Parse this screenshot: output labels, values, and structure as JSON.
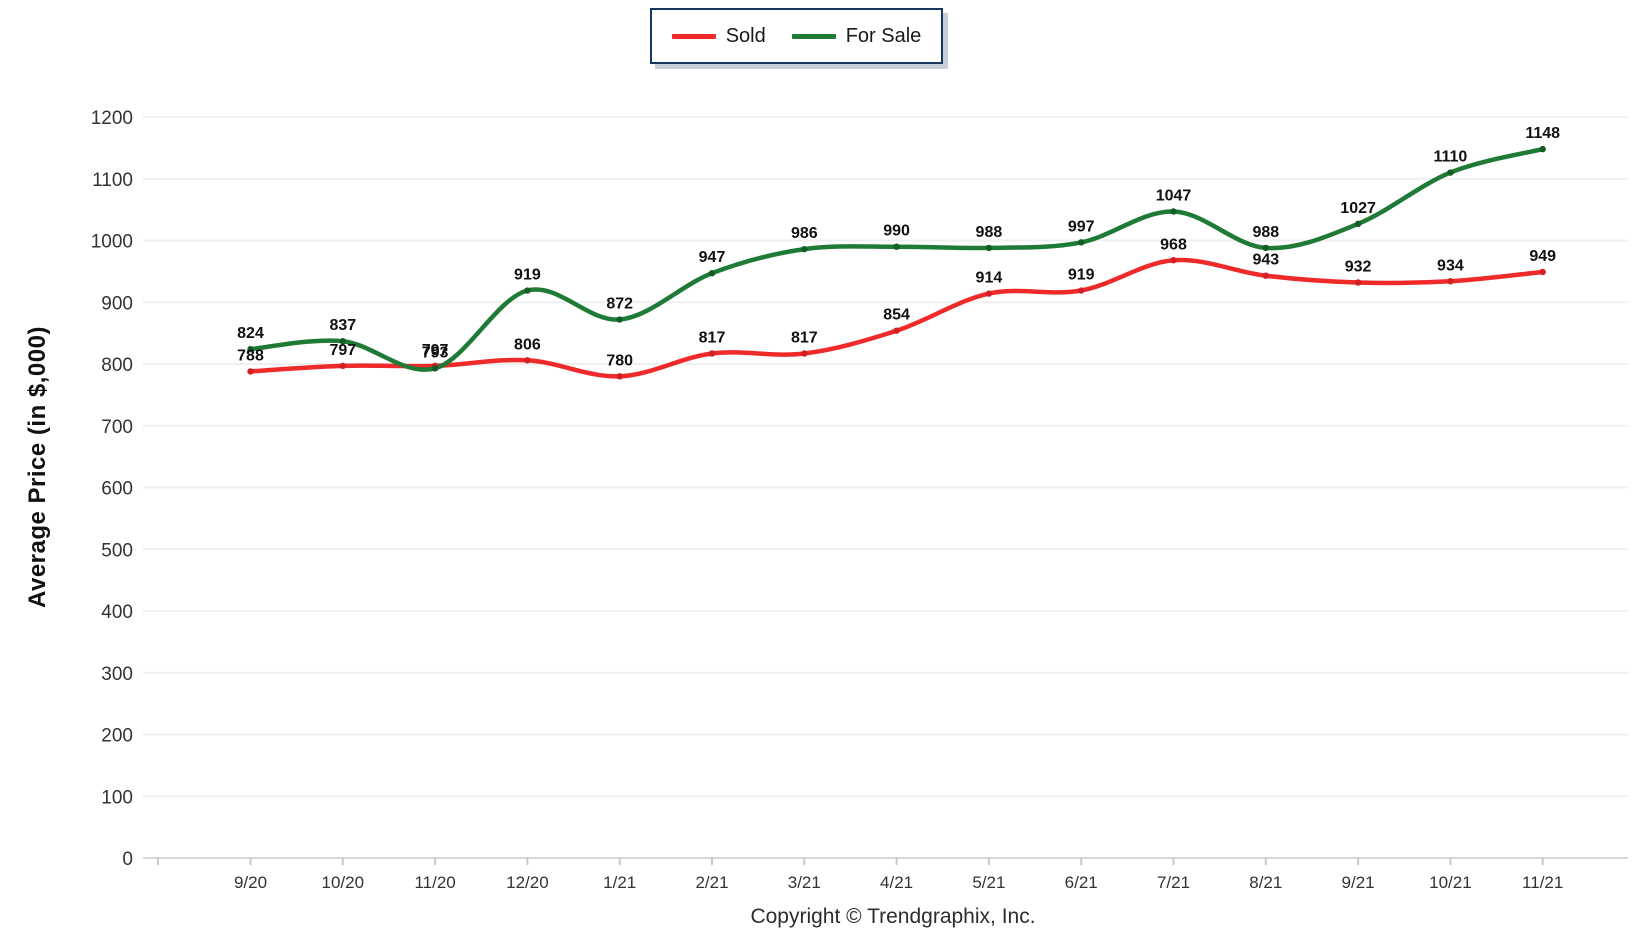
{
  "legend": {
    "items": [
      {
        "label": "Sold",
        "color": "#ee2a2a"
      },
      {
        "label": "For Sale",
        "color": "#1e7a34"
      }
    ]
  },
  "footer": {
    "copyright": "Copyright © Trendgraphix, Inc."
  },
  "colors": {
    "sold_line": "#ee2a2a",
    "sold_marker": "#d41f24",
    "for_sale_line": "#1e7a34",
    "for_sale_marker": "#155c24",
    "gridline": "#efefef",
    "axis_line": "#d8d8d8",
    "tick_mark": "#c9c9c9",
    "tick_label": "#333333",
    "data_label": "#111111",
    "legend_border": "#17375e"
  },
  "chart_data": {
    "type": "line",
    "title": "",
    "xlabel": "",
    "ylabel": "Average Price (in $,000)",
    "categories": [
      "9/20",
      "10/20",
      "11/20",
      "12/20",
      "1/21",
      "2/21",
      "3/21",
      "4/21",
      "5/21",
      "6/21",
      "7/21",
      "8/21",
      "9/21",
      "10/21",
      "11/21"
    ],
    "series": [
      {
        "name": "Sold",
        "color": "#ee2a2a",
        "marker_color": "#d41f24",
        "values": [
          788,
          797,
          797,
          806,
          780,
          817,
          817,
          854,
          914,
          919,
          968,
          943,
          932,
          934,
          949
        ]
      },
      {
        "name": "For Sale",
        "color": "#1e7a34",
        "marker_color": "#155c24",
        "values": [
          824,
          837,
          793,
          919,
          872,
          947,
          986,
          990,
          988,
          997,
          1047,
          988,
          1027,
          1110,
          1148
        ]
      }
    ],
    "ylim": [
      0,
      1200
    ],
    "ytick_step": 100,
    "grid": "horizontal",
    "legend_position": "top-center",
    "smooth": true,
    "footnote": "Copyright © Trendgraphix, Inc."
  }
}
